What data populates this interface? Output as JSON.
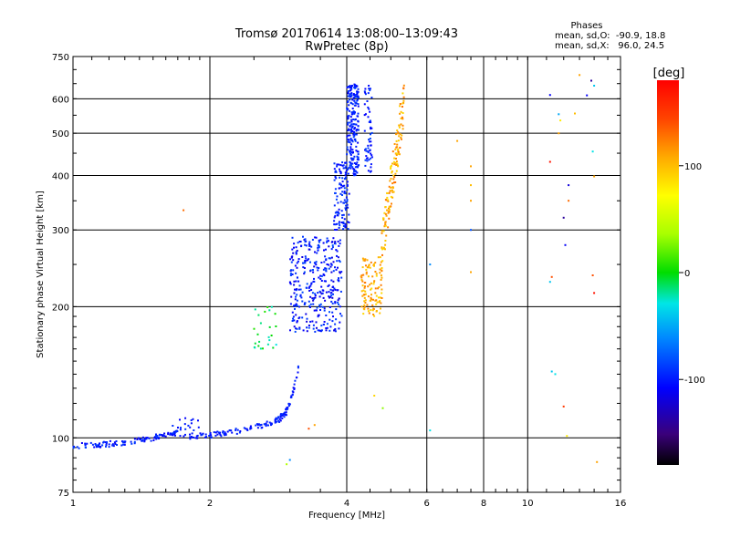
{
  "chart_data": {
    "type": "scatter",
    "title": "Tromsø 20170614 13:08:00–13:09:43",
    "subtitle": "RwPretec (8p)",
    "xlabel": "Frequency [MHz]",
    "ylabel": "Stationary phase Virtual Height [km]",
    "x_scale": "log",
    "y_scale": "log",
    "xlim": [
      1,
      16
    ],
    "ylim": [
      75,
      750
    ],
    "x_ticks": [
      {
        "v": 1,
        "label": "1"
      },
      {
        "v": 2,
        "label": "2"
      },
      {
        "v": 4,
        "label": "4"
      },
      {
        "v": 6,
        "label": "6"
      },
      {
        "v": 8,
        "label": "8"
      },
      {
        "v": 10,
        "label": "10"
      },
      {
        "v": 16,
        "label": "16"
      }
    ],
    "x_grid": [
      2,
      4,
      6,
      8,
      10
    ],
    "y_ticks": [
      {
        "v": 75,
        "label": "75"
      },
      {
        "v": 100,
        "label": "100"
      },
      {
        "v": 200,
        "label": "200"
      },
      {
        "v": 300,
        "label": "300"
      },
      {
        "v": 400,
        "label": "400"
      },
      {
        "v": 500,
        "label": "500"
      },
      {
        "v": 600,
        "label": "600"
      },
      {
        "v": 750,
        "label": "750"
      }
    ],
    "y_grid": [
      100,
      200,
      300,
      400,
      500,
      600
    ],
    "stats": {
      "header": "Phases",
      "line_o": "mean, sd,O:  -90.9, 18.8",
      "line_x": "mean, sd,X:   96.0, 24.5"
    },
    "colorbar": {
      "label": "[deg]",
      "min": -180,
      "max": 180,
      "ticks": [
        {
          "v": 100,
          "label": "100"
        },
        {
          "v": 0,
          "label": "0"
        },
        {
          "v": -100,
          "label": "-100"
        }
      ]
    },
    "clusters": [
      {
        "name": "e-layer-trace",
        "n": 120,
        "x": [
          1.0,
          1.7
        ],
        "y": [
          96,
          103
        ],
        "phase": [
          -115,
          -85
        ]
      },
      {
        "name": "e-layer-bumps",
        "n": 25,
        "x": [
          1.65,
          1.9
        ],
        "y": [
          100,
          112
        ],
        "phase": [
          -110,
          -90
        ]
      },
      {
        "name": "f1-lower-trace",
        "n": 100,
        "x": [
          1.8,
          2.95
        ],
        "y": [
          101,
          112
        ],
        "phase": [
          -110,
          -90
        ]
      },
      {
        "name": "f1-cusp",
        "n": 40,
        "x": [
          2.85,
          3.15
        ],
        "y": [
          112,
          150
        ],
        "phase": [
          -110,
          -90
        ]
      },
      {
        "name": "f1-cluster-dense",
        "n": 350,
        "x": [
          3.0,
          3.9
        ],
        "y": [
          175,
          290
        ],
        "phase": [
          -120,
          -80
        ]
      },
      {
        "name": "f2-rise",
        "n": 120,
        "x": [
          3.75,
          4.05
        ],
        "y": [
          300,
          430
        ],
        "phase": [
          -110,
          -85
        ]
      },
      {
        "name": "f2-o-column",
        "n": 220,
        "x": [
          4.0,
          4.25
        ],
        "y": [
          400,
          650
        ],
        "phase": [
          -110,
          -85
        ]
      },
      {
        "name": "f2-column-right",
        "n": 60,
        "x": [
          4.38,
          4.55
        ],
        "y": [
          400,
          650
        ],
        "phase": [
          -110,
          -85
        ]
      },
      {
        "name": "x-trace-lower",
        "n": 110,
        "x": [
          4.3,
          4.8
        ],
        "y": [
          190,
          260
        ],
        "phase": [
          85,
          125
        ]
      },
      {
        "name": "x-trace-upper",
        "n": 140,
        "x": [
          4.75,
          5.35
        ],
        "y": [
          260,
          600
        ],
        "phase": [
          85,
          130
        ]
      },
      {
        "name": "f1-x-scatter",
        "n": 25,
        "x": [
          2.5,
          2.8
        ],
        "y": [
          160,
          200
        ],
        "phase": [
          -30,
          10
        ]
      }
    ],
    "sparse_points": [
      {
        "x": 1.75,
        "y": 333,
        "phase": 130
      },
      {
        "x": 2.95,
        "y": 87,
        "phase": 40
      },
      {
        "x": 3.0,
        "y": 89,
        "phase": -60
      },
      {
        "x": 3.4,
        "y": 107,
        "phase": 110
      },
      {
        "x": 3.3,
        "y": 105,
        "phase": 140
      },
      {
        "x": 4.6,
        "y": 125,
        "phase": 90
      },
      {
        "x": 4.8,
        "y": 117,
        "phase": 30
      },
      {
        "x": 6.1,
        "y": 104,
        "phase": -30
      },
      {
        "x": 6.1,
        "y": 250,
        "phase": -60
      },
      {
        "x": 7.0,
        "y": 480,
        "phase": 110
      },
      {
        "x": 7.5,
        "y": 420,
        "phase": 110
      },
      {
        "x": 7.5,
        "y": 380,
        "phase": 100
      },
      {
        "x": 7.5,
        "y": 350,
        "phase": 110
      },
      {
        "x": 7.5,
        "y": 300,
        "phase": -80
      },
      {
        "x": 7.5,
        "y": 240,
        "phase": 110
      },
      {
        "x": 11.2,
        "y": 612,
        "phase": -110
      },
      {
        "x": 11.2,
        "y": 430,
        "phase": 170
      },
      {
        "x": 11.3,
        "y": 234,
        "phase": 140
      },
      {
        "x": 11.2,
        "y": 228,
        "phase": -40
      },
      {
        "x": 11.3,
        "y": 142,
        "phase": -40
      },
      {
        "x": 11.5,
        "y": 140,
        "phase": -30
      },
      {
        "x": 11.7,
        "y": 500,
        "phase": 110
      },
      {
        "x": 11.8,
        "y": 535,
        "phase": 80
      },
      {
        "x": 11.7,
        "y": 553,
        "phase": -50
      },
      {
        "x": 12.0,
        "y": 320,
        "phase": -140
      },
      {
        "x": 12.1,
        "y": 277,
        "phase": -110
      },
      {
        "x": 12.3,
        "y": 380,
        "phase": -120
      },
      {
        "x": 12.3,
        "y": 350,
        "phase": 130
      },
      {
        "x": 12.0,
        "y": 118,
        "phase": 150
      },
      {
        "x": 12.2,
        "y": 101,
        "phase": 80
      },
      {
        "x": 12.7,
        "y": 555,
        "phase": 100
      },
      {
        "x": 13.0,
        "y": 680,
        "phase": 110
      },
      {
        "x": 13.5,
        "y": 611,
        "phase": -110
      },
      {
        "x": 13.8,
        "y": 660,
        "phase": -140
      },
      {
        "x": 14.0,
        "y": 643,
        "phase": -40
      },
      {
        "x": 13.9,
        "y": 454,
        "phase": -30
      },
      {
        "x": 14.0,
        "y": 398,
        "phase": 110
      },
      {
        "x": 13.9,
        "y": 236,
        "phase": 140
      },
      {
        "x": 14.0,
        "y": 215,
        "phase": 170
      },
      {
        "x": 14.2,
        "y": 88,
        "phase": 110
      }
    ]
  }
}
